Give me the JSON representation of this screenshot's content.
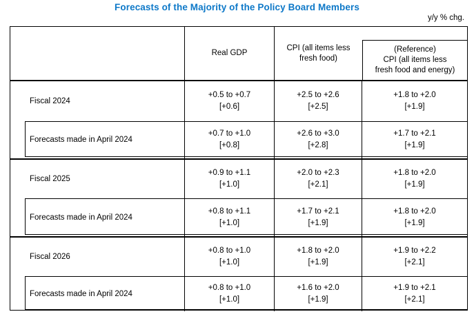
{
  "title": "Forecasts of the Majority of the Policy Board Members",
  "unit_note": "y/y % chg.",
  "colors": {
    "title_accent": "#0d78c8",
    "border": "#000000",
    "text": "#000000",
    "background": "#ffffff"
  },
  "table": {
    "header": {
      "gdp": "Real GDP",
      "cpi_lines": [
        "CPI (all items less",
        "fresh food)"
      ],
      "ref_lines": [
        "(Reference)",
        "CPI (all items less",
        "fresh food and energy)"
      ]
    },
    "groups": [
      {
        "fiscal_label": "Fiscal 2024",
        "fiscal": {
          "gdp_range": "+0.5 to +0.7",
          "gdp_median": "[+0.6]",
          "cpi_range": "+2.5 to +2.6",
          "cpi_median": "[+2.5]",
          "ref_range": "+1.8 to +2.0",
          "ref_median": "[+1.9]"
        },
        "april_label": "Forecasts made in April 2024",
        "april": {
          "gdp_range": "+0.7 to +1.0",
          "gdp_median": "[+0.8]",
          "cpi_range": "+2.6 to +3.0",
          "cpi_median": "[+2.8]",
          "ref_range": "+1.7 to +2.1",
          "ref_median": "[+1.9]"
        }
      },
      {
        "fiscal_label": "Fiscal 2025",
        "fiscal": {
          "gdp_range": "+0.9 to +1.1",
          "gdp_median": "[+1.0]",
          "cpi_range": "+2.0 to +2.3",
          "cpi_median": "[+2.1]",
          "ref_range": "+1.8 to +2.0",
          "ref_median": "[+1.9]"
        },
        "april_label": "Forecasts made in April 2024",
        "april": {
          "gdp_range": "+0.8 to +1.1",
          "gdp_median": "[+1.0]",
          "cpi_range": "+1.7 to +2.1",
          "cpi_median": "[+1.9]",
          "ref_range": "+1.8 to +2.0",
          "ref_median": "[+1.9]"
        }
      },
      {
        "fiscal_label": "Fiscal 2026",
        "fiscal": {
          "gdp_range": "+0.8 to +1.0",
          "gdp_median": "[+1.0]",
          "cpi_range": "+1.8 to +2.0",
          "cpi_median": "[+1.9]",
          "ref_range": "+1.9 to +2.2",
          "ref_median": "[+2.1]"
        },
        "april_label": "Forecasts made in April 2024",
        "april": {
          "gdp_range": "+0.8 to +1.0",
          "gdp_median": "[+1.0]",
          "cpi_range": "+1.6 to +2.0",
          "cpi_median": "[+1.9]",
          "ref_range": "+1.9 to +2.1",
          "ref_median": "[+2.1]"
        }
      }
    ]
  }
}
